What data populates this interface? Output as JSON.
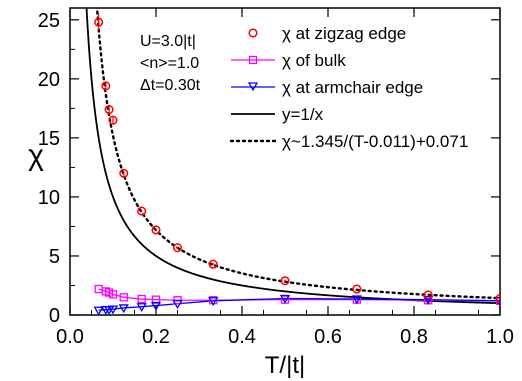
{
  "chart_data": {
    "type": "scatter",
    "xlabel": "T/|t|",
    "ylabel": "χ",
    "xlim": [
      0.0,
      1.0
    ],
    "ylim": [
      0,
      26
    ],
    "x_ticks": [
      "0.0",
      "0.2",
      "0.4",
      "0.6",
      "0.8",
      "1.0"
    ],
    "y_ticks": [
      "0",
      "5",
      "10",
      "15",
      "20",
      "25"
    ],
    "legend_position": "top-right",
    "annotations": [
      "U=3.0|t|",
      "<n>=1.0",
      "Δt=0.30t"
    ],
    "series": [
      {
        "name": "χ at zigzag edge",
        "color": "#ff0000",
        "marker": "circle",
        "x": [
          0.0667,
          0.0833,
          0.0909,
          0.1,
          0.125,
          0.1667,
          0.2,
          0.25,
          0.333,
          0.5,
          0.667,
          0.833,
          1.0
        ],
        "y": [
          24.8,
          19.4,
          17.4,
          16.5,
          12.0,
          8.8,
          7.2,
          5.7,
          4.3,
          2.9,
          2.2,
          1.7,
          1.4
        ],
        "err": [
          0.7,
          0.4,
          0.4,
          0.3,
          0.2,
          0.1,
          0.1,
          0.1,
          0.1,
          0.1,
          0.05,
          0.05,
          0.05
        ]
      },
      {
        "name": "χ of bulk",
        "color": "#ff00ff",
        "marker": "square",
        "x": [
          0.0667,
          0.0833,
          0.0909,
          0.1,
          0.125,
          0.1667,
          0.2,
          0.25,
          0.333,
          0.5,
          0.667,
          0.833,
          1.0
        ],
        "y": [
          2.2,
          2.0,
          1.9,
          1.75,
          1.5,
          1.35,
          1.3,
          1.25,
          1.25,
          1.3,
          1.3,
          1.25,
          1.2
        ]
      },
      {
        "name": "χ at armchair edge",
        "color": "#0000ff",
        "marker": "triangle-down",
        "x": [
          0.0667,
          0.0833,
          0.0909,
          0.1,
          0.125,
          0.1667,
          0.2,
          0.25,
          0.333,
          0.5,
          0.667,
          0.833,
          1.0
        ],
        "y": [
          0.4,
          0.45,
          0.45,
          0.5,
          0.6,
          0.7,
          0.8,
          0.95,
          1.2,
          1.4,
          1.35,
          1.3,
          1.2
        ]
      },
      {
        "name": "y=1/x",
        "color": "#000000",
        "style": "solid"
      },
      {
        "name": "χ~1.345/(T-0.011)+0.071",
        "color": "#000000",
        "style": "dotted"
      }
    ]
  }
}
